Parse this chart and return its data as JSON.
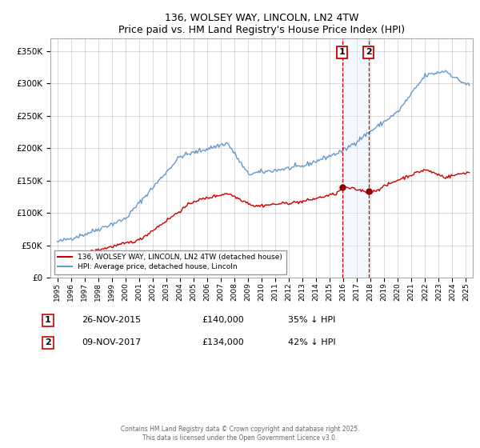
{
  "title": "136, WOLSEY WAY, LINCOLN, LN2 4TW",
  "subtitle": "Price paid vs. HM Land Registry's House Price Index (HPI)",
  "ylim": [
    0,
    370000
  ],
  "sale1_date": "26-NOV-2015",
  "sale1_price": 140000,
  "sale1_label": "35% ↓ HPI",
  "sale2_date": "09-NOV-2017",
  "sale2_price": 134000,
  "sale2_label": "42% ↓ HPI",
  "legend_label1": "136, WOLSEY WAY, LINCOLN, LN2 4TW (detached house)",
  "legend_label2": "HPI: Average price, detached house, Lincoln",
  "footer": "Contains HM Land Registry data © Crown copyright and database right 2025.\nThis data is licensed under the Open Government Licence v3.0.",
  "hpi_color": "#6699cc",
  "price_color": "#cc0000",
  "sale_marker_color": "#8b0000",
  "vline_color": "#cc0000",
  "shade_color": "#ddeeff",
  "hpi_noise_scale": 1800,
  "price_noise_scale": 1200
}
